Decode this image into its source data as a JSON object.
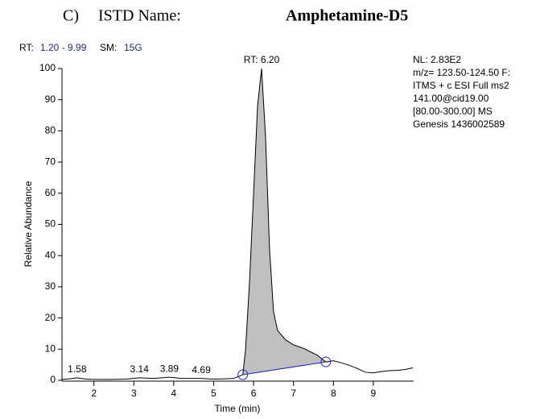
{
  "header": {
    "label": "C)",
    "field": "ISTD Name:",
    "name": "Amphetamine-D5"
  },
  "scan_info": {
    "rt_label": "RT:",
    "rt_range": "1.20 - 9.99",
    "sm_label": "SM:",
    "sm_value": "15G"
  },
  "info_block": [
    "NL: 2.83E2",
    "m/z= 123.50-124.50 F:",
    "ITMS + c ESI Full ms2",
    "141.00@cid19.00",
    "[80.00-300.00]  MS",
    "Genesis 1436002589"
  ],
  "chart_data": {
    "type": "line",
    "x_label": "Time (min)",
    "y_label": "Relative Abundance",
    "x": [
      1.2,
      1.4,
      1.58,
      1.8,
      2.0,
      2.4,
      2.8,
      3.14,
      3.5,
      3.89,
      4.2,
      4.69,
      5.0,
      5.3,
      5.5,
      5.73,
      5.8,
      5.9,
      6.0,
      6.1,
      6.2,
      6.3,
      6.4,
      6.5,
      6.6,
      6.8,
      7.0,
      7.3,
      7.6,
      7.81,
      8.0,
      8.2,
      8.4,
      8.6,
      8.8,
      9.0,
      9.2,
      9.4,
      9.6,
      9.8,
      9.99
    ],
    "values": [
      0.3,
      0.5,
      0.8,
      0.4,
      0.3,
      0.3,
      0.4,
      0.8,
      0.6,
      1.0,
      0.6,
      0.6,
      0.4,
      0.5,
      0.6,
      1.8,
      10,
      32,
      60,
      88,
      100,
      78,
      42,
      22,
      16,
      13,
      11.4,
      10,
      8,
      5.9,
      6.3,
      5.6,
      4.8,
      3.8,
      2.6,
      2.4,
      2.8,
      3.1,
      3.2,
      3.5,
      4.0
    ],
    "color": "#000000",
    "fill_color": "#c0c0c0",
    "baseline_color": "#2020d0",
    "integration": {
      "start": [
        5.73,
        1.8
      ],
      "end": [
        7.81,
        5.9
      ]
    },
    "apex": {
      "x": 6.2,
      "y": 100,
      "label": "RT: 6.20"
    },
    "peak_labels": [
      {
        "x": 1.58,
        "y": 0.8
      },
      {
        "x": 3.14,
        "y": 0.8
      },
      {
        "x": 3.89,
        "y": 1.0
      },
      {
        "x": 4.69,
        "y": 0.6
      }
    ],
    "xlim": [
      1.2,
      9.99
    ],
    "ylim": [
      0,
      100
    ],
    "xticks": [
      2,
      3,
      4,
      5,
      6,
      7,
      8,
      9
    ],
    "yticks": [
      0,
      10,
      20,
      30,
      40,
      50,
      60,
      70,
      80,
      90,
      100
    ]
  }
}
